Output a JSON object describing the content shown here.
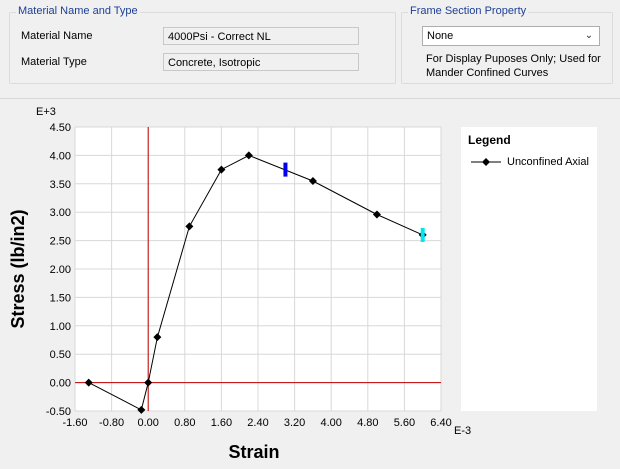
{
  "material_group": {
    "title": "Material Name and Type",
    "name_label": "Material Name",
    "name_value": "4000Psi - Correct NL",
    "type_label": "Material Type",
    "type_value": "Concrete, Isotropic"
  },
  "frame_group": {
    "title": "Frame Section Property",
    "selected": "None",
    "note_line1": "For Display Puposes Only;  Used for",
    "note_line2": "Mander Confined Curves"
  },
  "legend": {
    "title": "Legend",
    "entry": "Unconfined Axial"
  },
  "chart_data": {
    "type": "line",
    "xlabel": "Strain",
    "ylabel": "Stress (lb/in2)",
    "x_multiplier": "E-3",
    "y_multiplier": "E+3",
    "xlim": [
      -1.6,
      6.4
    ],
    "ylim": [
      -0.5,
      4.5
    ],
    "xticks": [
      "-1.60",
      "-0.80",
      "0.00",
      "0.80",
      "1.60",
      "2.40",
      "3.20",
      "4.00",
      "4.80",
      "5.60",
      "6.40"
    ],
    "yticks": [
      "-0.50",
      "0.00",
      "0.50",
      "1.00",
      "1.50",
      "2.00",
      "2.50",
      "3.00",
      "3.50",
      "4.00",
      "4.50"
    ],
    "grid": true,
    "legend_position": "right",
    "series": [
      {
        "name": "Unconfined Axial",
        "color": "#000000",
        "x": [
          -1.3,
          -0.15,
          0.0,
          0.2,
          0.9,
          1.6,
          2.2,
          3.6,
          5.0,
          6.0
        ],
        "y": [
          0.0,
          -0.48,
          0.0,
          0.8,
          2.75,
          3.75,
          4.0,
          3.55,
          2.96,
          2.6
        ]
      }
    ],
    "markers": [
      {
        "x": 3.0,
        "y": 3.75,
        "color": "#0000ee"
      },
      {
        "x": 6.0,
        "y": 2.6,
        "color": "#00e5ee"
      }
    ],
    "axis_line_color": "#c00000"
  }
}
